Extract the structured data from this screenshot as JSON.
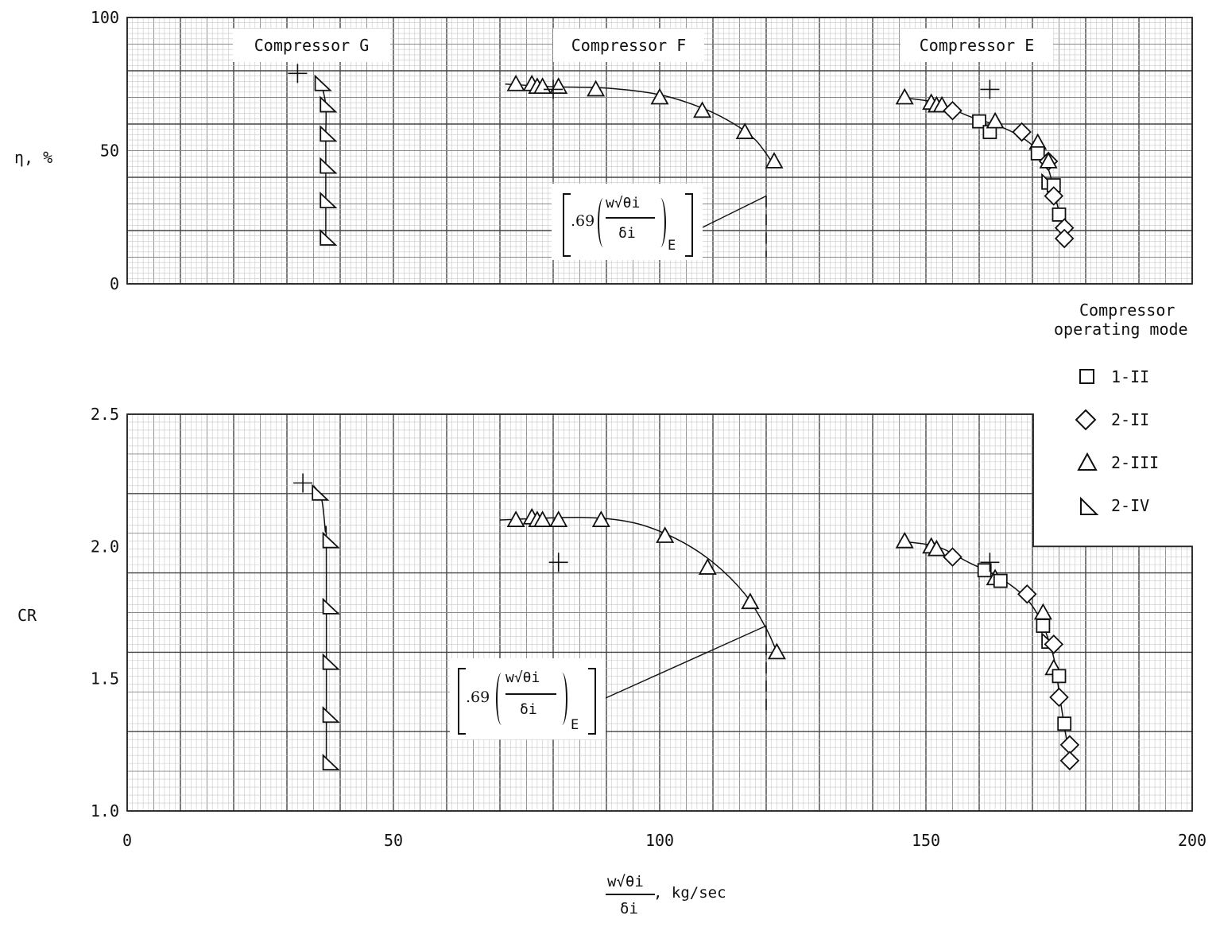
{
  "chart_data": [
    {
      "type": "scatter",
      "panel": "top",
      "ylabel": "η, %",
      "ylim": [
        0,
        100
      ],
      "yticks": [
        "0",
        "50",
        "100"
      ],
      "xlim": [
        0,
        200
      ],
      "groups": [
        {
          "label": "Compressor G",
          "points": [
            {
              "mode": "2-IV",
              "x": 36.5,
              "y": 75
            },
            {
              "mode": "2-IV",
              "x": 37.5,
              "y": 67
            },
            {
              "mode": "2-IV",
              "x": 37.5,
              "y": 56
            },
            {
              "mode": "2-IV",
              "x": 37.5,
              "y": 44
            },
            {
              "mode": "2-IV",
              "x": 37.5,
              "y": 31
            },
            {
              "mode": "2-IV",
              "x": 37.5,
              "y": 17
            }
          ],
          "curve": [
            [
              36.5,
              75
            ],
            [
              37.3,
              67
            ],
            [
              37.3,
              56
            ],
            [
              37.3,
              44
            ],
            [
              37.3,
              31
            ],
            [
              37.3,
              17
            ]
          ],
          "design_points": [
            [
              32,
              79
            ]
          ]
        },
        {
          "label": "Compressor F",
          "points": [
            {
              "mode": "2-III",
              "x": 73,
              "y": 75
            },
            {
              "mode": "2-III",
              "x": 76,
              "y": 75
            },
            {
              "mode": "2-III",
              "x": 77,
              "y": 74
            },
            {
              "mode": "2-III",
              "x": 78,
              "y": 74
            },
            {
              "mode": "2-III",
              "x": 81,
              "y": 74
            },
            {
              "mode": "2-III",
              "x": 88,
              "y": 73
            },
            {
              "mode": "2-III",
              "x": 100,
              "y": 70
            },
            {
              "mode": "2-III",
              "x": 108,
              "y": 65
            },
            {
              "mode": "2-III",
              "x": 116,
              "y": 57
            },
            {
              "mode": "2-III",
              "x": 121.5,
              "y": 46
            }
          ],
          "curve": [
            [
              71,
              75
            ],
            [
              80,
              74
            ],
            [
              90,
              73.5
            ],
            [
              100,
              71
            ],
            [
              108,
              66
            ],
            [
              114,
              60
            ],
            [
              118,
              54
            ],
            [
              121,
              46
            ]
          ],
          "design_points": [
            [
              80,
              73
            ]
          ],
          "annotation": {
            "text": ".69",
            "group": "E",
            "x": 120,
            "ylow": 10,
            "yhigh": 33
          }
        },
        {
          "label": "Compressor E",
          "points": [
            {
              "mode": "2-III",
              "x": 146,
              "y": 70
            },
            {
              "mode": "2-III",
              "x": 151,
              "y": 68
            },
            {
              "mode": "2-III",
              "x": 152,
              "y": 67
            },
            {
              "mode": "2-III",
              "x": 153,
              "y": 67
            },
            {
              "mode": "2-II",
              "x": 155,
              "y": 65
            },
            {
              "mode": "1-II",
              "x": 160,
              "y": 61
            },
            {
              "mode": "1-II",
              "x": 162,
              "y": 57
            },
            {
              "mode": "2-III",
              "x": 163,
              "y": 61
            },
            {
              "mode": "2-II",
              "x": 168,
              "y": 57
            },
            {
              "mode": "2-III",
              "x": 171,
              "y": 53
            },
            {
              "mode": "1-II",
              "x": 171,
              "y": 49
            },
            {
              "mode": "2-II",
              "x": 173,
              "y": 46
            },
            {
              "mode": "2-III",
              "x": 173,
              "y": 46
            },
            {
              "mode": "2-IV",
              "x": 173,
              "y": 38
            },
            {
              "mode": "1-II",
              "x": 174,
              "y": 37
            },
            {
              "mode": "2-II",
              "x": 174,
              "y": 33
            },
            {
              "mode": "1-II",
              "x": 175,
              "y": 26
            },
            {
              "mode": "2-II",
              "x": 176,
              "y": 21
            },
            {
              "mode": "2-II",
              "x": 176,
              "y": 17
            }
          ],
          "curve": [
            [
              145,
              70
            ],
            [
              152,
              68
            ],
            [
              158,
              63
            ],
            [
              164,
              59
            ],
            [
              168,
              55
            ],
            [
              171,
              50
            ],
            [
              173,
              43
            ],
            [
              174,
              35
            ],
            [
              175,
              27
            ],
            [
              176,
              18
            ]
          ],
          "design_points": [
            [
              162,
              73
            ]
          ]
        }
      ]
    },
    {
      "type": "scatter",
      "panel": "bottom",
      "ylabel": "CR",
      "ylim": [
        1.0,
        2.5
      ],
      "yticks": [
        "1.0",
        "1.5",
        "2.0",
        "2.5"
      ],
      "xlabel": "kg/sec",
      "xlim": [
        0,
        200
      ],
      "xticks": [
        "0",
        "50",
        "100",
        "150",
        "200"
      ],
      "groups": [
        {
          "label": "Compressor G",
          "points": [
            {
              "mode": "2-IV",
              "x": 36,
              "y": 2.2
            },
            {
              "mode": "2-IV",
              "x": 38,
              "y": 2.02
            },
            {
              "mode": "2-IV",
              "x": 38,
              "y": 1.77
            },
            {
              "mode": "2-IV",
              "x": 38,
              "y": 1.56
            },
            {
              "mode": "2-IV",
              "x": 38,
              "y": 1.36
            },
            {
              "mode": "2-IV",
              "x": 38,
              "y": 1.18
            }
          ],
          "curve": [
            [
              35,
              2.23
            ],
            [
              36.5,
              2.18
            ],
            [
              37.2,
              2.06
            ],
            [
              37.4,
              2.0
            ],
            [
              37.4,
              1.18
            ]
          ],
          "design_points": [
            [
              33,
              2.24
            ]
          ]
        },
        {
          "label": "Compressor F",
          "points": [
            {
              "mode": "2-III",
              "x": 73,
              "y": 2.1
            },
            {
              "mode": "2-III",
              "x": 76,
              "y": 2.11
            },
            {
              "mode": "2-III",
              "x": 77,
              "y": 2.1
            },
            {
              "mode": "2-III",
              "x": 78,
              "y": 2.1
            },
            {
              "mode": "2-III",
              "x": 81,
              "y": 2.1
            },
            {
              "mode": "2-III",
              "x": 89,
              "y": 2.1
            },
            {
              "mode": "2-III",
              "x": 101,
              "y": 2.04
            },
            {
              "mode": "2-III",
              "x": 109,
              "y": 1.92
            },
            {
              "mode": "2-III",
              "x": 117,
              "y": 1.79
            },
            {
              "mode": "2-III",
              "x": 122,
              "y": 1.6
            }
          ],
          "curve": [
            [
              70,
              2.1
            ],
            [
              85,
              2.11
            ],
            [
              95,
              2.09
            ],
            [
              103,
              2.03
            ],
            [
              110,
              1.94
            ],
            [
              116,
              1.82
            ],
            [
              120,
              1.69
            ],
            [
              122,
              1.6
            ]
          ],
          "design_points": [
            [
              81,
              1.94
            ]
          ],
          "annotation": {
            "text": ".69",
            "group": "E",
            "x": 120,
            "ylow": 1.38,
            "yhigh": 1.7
          }
        },
        {
          "label": "Compressor E",
          "points": [
            {
              "mode": "2-III",
              "x": 146,
              "y": 2.02
            },
            {
              "mode": "2-III",
              "x": 151,
              "y": 2.0
            },
            {
              "mode": "2-III",
              "x": 152,
              "y": 1.99
            },
            {
              "mode": "2-II",
              "x": 155,
              "y": 1.96
            },
            {
              "mode": "1-II",
              "x": 161,
              "y": 1.91
            },
            {
              "mode": "2-III",
              "x": 163,
              "y": 1.88
            },
            {
              "mode": "1-II",
              "x": 164,
              "y": 1.87
            },
            {
              "mode": "2-II",
              "x": 169,
              "y": 1.82
            },
            {
              "mode": "2-III",
              "x": 172,
              "y": 1.75
            },
            {
              "mode": "1-II",
              "x": 172,
              "y": 1.7
            },
            {
              "mode": "2-IV",
              "x": 173,
              "y": 1.64
            },
            {
              "mode": "2-II",
              "x": 174,
              "y": 1.63
            },
            {
              "mode": "2-III",
              "x": 174,
              "y": 1.54
            },
            {
              "mode": "1-II",
              "x": 175,
              "y": 1.51
            },
            {
              "mode": "2-II",
              "x": 175,
              "y": 1.43
            },
            {
              "mode": "1-II",
              "x": 176,
              "y": 1.33
            },
            {
              "mode": "2-II",
              "x": 177,
              "y": 1.25
            },
            {
              "mode": "2-II",
              "x": 177,
              "y": 1.19
            }
          ],
          "curve": [
            [
              145,
              2.02
            ],
            [
              152,
              2.0
            ],
            [
              158,
              1.94
            ],
            [
              164,
              1.88
            ],
            [
              169,
              1.8
            ],
            [
              172,
              1.7
            ],
            [
              174,
              1.58
            ],
            [
              175,
              1.45
            ],
            [
              176,
              1.32
            ],
            [
              177,
              1.2
            ]
          ],
          "design_points": [
            [
              162,
              1.94
            ]
          ]
        }
      ]
    }
  ],
  "legend": {
    "title": [
      "Compressor",
      "operating mode"
    ],
    "entries": [
      {
        "mode": "1-II",
        "marker": "square"
      },
      {
        "mode": "2-II",
        "marker": "diamond"
      },
      {
        "mode": "2-III",
        "marker": "triangle"
      },
      {
        "mode": "2-IV",
        "marker": "right-triangle"
      }
    ],
    "placement": "right"
  },
  "xlabel_formula": {
    "numerator": "w√θi",
    "denominator": "δi",
    "unit": ", kg/sec"
  },
  "annotation_formula": {
    "coef": ".69",
    "numerator": "w√θi",
    "denominator": "δi",
    "subscript": "E"
  },
  "colors": {
    "grid_major": "#444444",
    "grid_minor": "#c8c8c8",
    "ink": "#111111"
  }
}
